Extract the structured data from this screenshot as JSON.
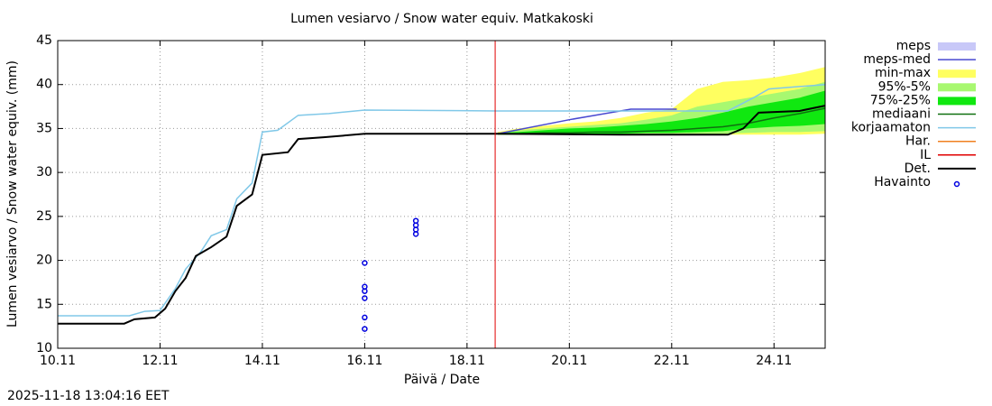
{
  "chart_data": {
    "type": "line",
    "title": "Lumen vesiarvo / Snow water equiv.  Matkakoski",
    "x_label": "Päivä / Date",
    "y_label": "Lumen vesiarvo / Snow water equiv. (mm)",
    "timestamp": "2025-11-18 13:04:16 EET",
    "xlim": [
      10,
      25
    ],
    "ylim": [
      10,
      45
    ],
    "xticks": [
      {
        "value": 10,
        "label": "10.11"
      },
      {
        "value": 12,
        "label": "12.11"
      },
      {
        "value": 14,
        "label": "14.11"
      },
      {
        "value": 16,
        "label": "16.11"
      },
      {
        "value": 18,
        "label": "18.11"
      },
      {
        "value": 20,
        "label": "20.11"
      },
      {
        "value": 22,
        "label": "22.11"
      },
      {
        "value": 24,
        "label": "24.11"
      }
    ],
    "yticks": [
      10,
      15,
      20,
      25,
      30,
      35,
      40,
      45
    ],
    "grid": true,
    "forecast_start": 18.55,
    "series": [
      {
        "name": "meps",
        "kind": "band",
        "color": "#c8c8f8",
        "x": [],
        "lower": [],
        "upper": []
      },
      {
        "name": "meps-med",
        "kind": "line",
        "color": "#4848d0",
        "x": [
          18.6,
          20,
          21.2,
          22.1
        ],
        "values": [
          34.4,
          36.0,
          37.2,
          37.2
        ]
      },
      {
        "name": "min-max",
        "kind": "band",
        "color": "#ffff60",
        "x": [
          18.6,
          19,
          19.5,
          20,
          20.5,
          21,
          21.5,
          22,
          22.5,
          23,
          23.5,
          24,
          24.5,
          25
        ],
        "lower": [
          34.3,
          34.3,
          34.3,
          34.3,
          34.3,
          34.3,
          34.3,
          34.3,
          34.3,
          34.3,
          34.3,
          34.3,
          34.3,
          34.4
        ],
        "upper": [
          34.6,
          35.0,
          35.3,
          35.6,
          35.8,
          36.2,
          36.8,
          37.2,
          39.5,
          40.3,
          40.5,
          40.8,
          41.3,
          42.0
        ]
      },
      {
        "name": "95%-5%",
        "kind": "band",
        "color": "#a8f870",
        "x": [
          18.6,
          19,
          19.5,
          20,
          20.5,
          21,
          21.5,
          22,
          22.5,
          23,
          23.5,
          24,
          24.5,
          25
        ],
        "lower": [
          34.3,
          34.3,
          34.3,
          34.3,
          34.3,
          34.3,
          34.3,
          34.3,
          34.4,
          34.4,
          34.5,
          34.6,
          34.6,
          34.7
        ],
        "upper": [
          34.5,
          34.8,
          35.0,
          35.2,
          35.4,
          35.6,
          36.0,
          36.5,
          37.5,
          38.0,
          38.5,
          39.0,
          39.5,
          40.3
        ]
      },
      {
        "name": "75%-25%",
        "kind": "band",
        "color": "#10e810",
        "x": [
          18.6,
          19,
          19.5,
          20,
          20.5,
          21,
          21.5,
          22,
          22.5,
          23,
          23.5,
          24,
          24.5,
          25
        ],
        "lower": [
          34.3,
          34.3,
          34.3,
          34.4,
          34.4,
          34.4,
          34.5,
          34.5,
          34.6,
          34.7,
          35.0,
          35.2,
          35.3,
          35.5
        ],
        "upper": [
          34.5,
          34.6,
          34.8,
          35.0,
          35.1,
          35.3,
          35.5,
          35.8,
          36.2,
          36.8,
          37.5,
          38.0,
          38.5,
          39.3
        ]
      },
      {
        "name": "mediaani",
        "kind": "line",
        "color": "#107010",
        "x": [
          18.6,
          19,
          19.5,
          20,
          20.5,
          21,
          21.5,
          22,
          22.5,
          23,
          23.5,
          24,
          24.5,
          25
        ],
        "values": [
          34.4,
          34.4,
          34.5,
          34.5,
          34.6,
          34.6,
          34.7,
          34.8,
          35.0,
          35.2,
          35.6,
          36.2,
          36.7,
          37.3
        ]
      },
      {
        "name": "korjaamaton",
        "kind": "line",
        "color": "#80c8e8",
        "x": [
          10,
          11.4,
          11.7,
          12.0,
          12.3,
          12.5,
          12.8,
          13.0,
          13.3,
          13.5,
          13.8,
          14.0,
          14.3,
          14.7,
          15.3,
          16.0,
          18.6,
          23.1,
          23.6,
          23.9,
          25
        ],
        "values": [
          13.7,
          13.7,
          14.2,
          14.3,
          16.8,
          19,
          21,
          22.8,
          23.5,
          27,
          28.8,
          34.6,
          34.8,
          36.5,
          36.7,
          37.1,
          37.0,
          37.0,
          38.5,
          39.5,
          40.0
        ]
      },
      {
        "name": "Har.",
        "kind": "line",
        "color": "#f08020",
        "x": [],
        "values": []
      },
      {
        "name": "IL",
        "kind": "line",
        "color": "#e00000",
        "x": [],
        "values": []
      },
      {
        "name": "Det.",
        "kind": "line",
        "color": "#000000",
        "x": [
          10,
          11.3,
          11.5,
          11.9,
          12.1,
          12.3,
          12.5,
          12.7,
          13.0,
          13.3,
          13.5,
          13.8,
          14.0,
          14.5,
          14.7,
          15.2,
          16.0,
          18.6,
          21,
          23.1,
          23.4,
          23.7,
          24.5,
          25
        ],
        "values": [
          12.8,
          12.8,
          13.3,
          13.5,
          14.5,
          16.5,
          18,
          20.5,
          21.5,
          22.7,
          26.2,
          27.5,
          32,
          32.3,
          33.8,
          34,
          34.4,
          34.4,
          34.3,
          34.3,
          35,
          36.8,
          37,
          37.6
        ]
      },
      {
        "name": "Havainto",
        "kind": "scatter",
        "color": "#0000e0",
        "x": [
          16.0,
          16.0,
          16.0,
          16.0,
          16.0,
          16.0,
          17.0,
          17.0,
          17.0,
          17.0
        ],
        "values": [
          19.7,
          17.0,
          16.5,
          15.7,
          13.5,
          12.2,
          24.5,
          24.0,
          23.5,
          23.0
        ]
      }
    ]
  }
}
